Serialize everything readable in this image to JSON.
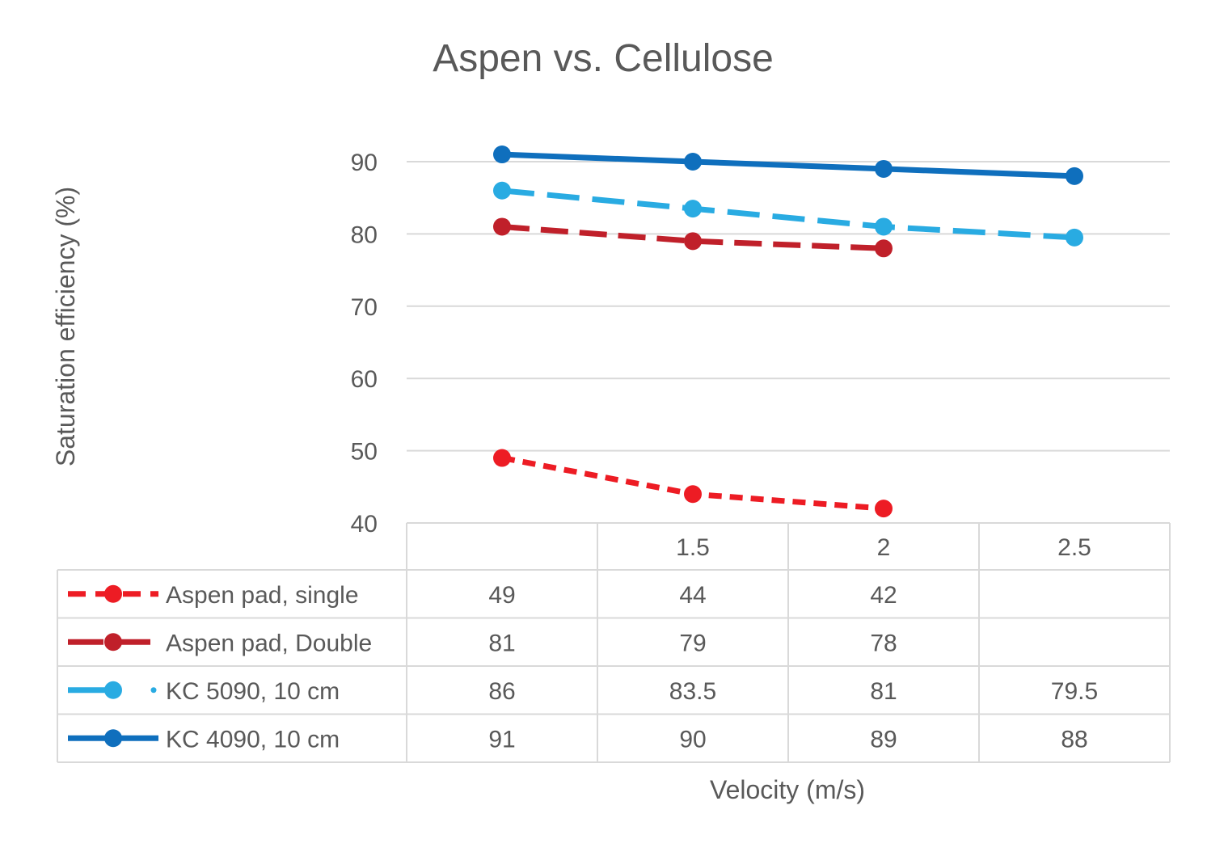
{
  "chart_data": {
    "type": "line",
    "title": "Aspen vs. Cellulose",
    "xlabel": "Velocity (m/s)",
    "ylabel": "Saturation efficiency (%)",
    "categories": [
      "",
      "1.5",
      "2",
      "2.5"
    ],
    "ylim": [
      40,
      90
    ],
    "yticks": [
      "40",
      "50",
      "60",
      "70",
      "80",
      "90"
    ],
    "grid": true,
    "legend": "data-table",
    "series": [
      {
        "name": "Aspen pad, single",
        "values": [
          49,
          44,
          42,
          null
        ],
        "labels": [
          "49",
          "44",
          "42",
          ""
        ],
        "color": "#ed1c24",
        "style": "dash"
      },
      {
        "name": "Aspen pad, Double",
        "values": [
          81,
          79,
          78,
          null
        ],
        "labels": [
          "81",
          "79",
          "78",
          ""
        ],
        "color": "#c0202a",
        "style": "longdash"
      },
      {
        "name": "KC 5090, 10 cm",
        "values": [
          86,
          83.5,
          81,
          79.5
        ],
        "labels": [
          "86",
          "83.5",
          "81",
          "79.5"
        ],
        "color": "#29abe2",
        "style": "longdash-dot"
      },
      {
        "name": "KC 4090, 10 cm",
        "values": [
          91,
          90,
          89,
          88
        ],
        "labels": [
          "91",
          "90",
          "89",
          "88"
        ],
        "color": "#0f6fbd",
        "style": "solid"
      }
    ]
  }
}
